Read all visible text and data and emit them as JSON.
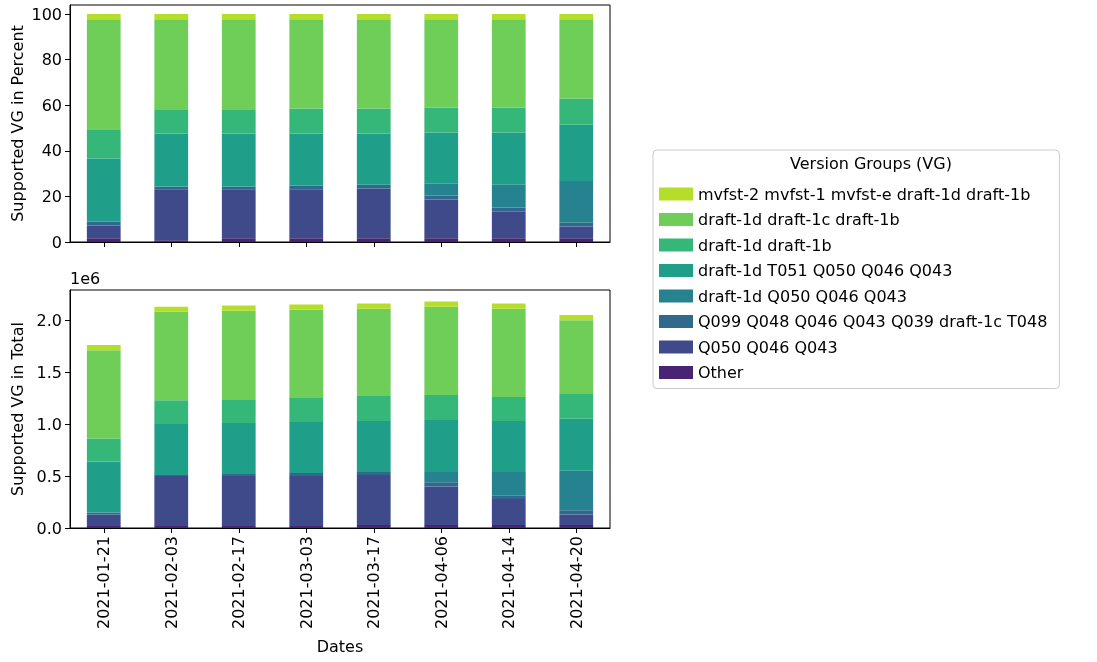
{
  "chart_data": [
    {
      "type": "bar",
      "stacked": true,
      "ylabel": "Supported VG in Percent",
      "legend": "right",
      "legend_title": "Version Groups (VG)",
      "tick_labels": "y",
      "grid": false,
      "categories": [
        "2021-01-21",
        "2021-02-03",
        "2021-02-17",
        "2021-03-03",
        "2021-03-17",
        "2021-04-06",
        "2021-04-14",
        "2021-04-20"
      ],
      "ylim": [
        0,
        104
      ],
      "yticks": [
        0,
        20,
        40,
        60,
        80,
        100
      ],
      "series": [
        {
          "name": "Other",
          "color": "#482475",
          "values": [
            1.6,
            0.8,
            1.6,
            1.6,
            1.6,
            1.6,
            1.6,
            1.6
          ]
        },
        {
          "name": "Q050 Q046 Q043",
          "color": "#3e4a89",
          "values": [
            5.6,
            22.3,
            21.5,
            21.5,
            21.9,
            17.1,
            11.7,
            5.2
          ]
        },
        {
          "name": "Q099 Q048 Q046 Q043 Q039 draft-1c T048",
          "color": "#31688e",
          "values": [
            1.8,
            1.2,
            1.2,
            1.7,
            1.6,
            1.7,
            1.8,
            1.7
          ]
        },
        {
          "name": "draft-1d Q050 Q046 Q043",
          "color": "#26828e",
          "values": [
            0,
            0,
            0,
            0,
            0,
            5.2,
            10.0,
            18.3
          ]
        },
        {
          "name": "draft-1d T051 Q050 Q046 Q043",
          "color": "#1f9e89",
          "values": [
            27.6,
            23.3,
            23.3,
            22.8,
            22.5,
            22.4,
            22.9,
            24.7
          ]
        },
        {
          "name": "draft-1d draft-1b",
          "color": "#35b779",
          "values": [
            12.9,
            10.6,
            10.6,
            11.0,
            11.0,
            11.0,
            11.0,
            11.5
          ]
        },
        {
          "name": "draft-1d draft-1c draft-1b",
          "color": "#6ece58",
          "values": [
            48.3,
            39.6,
            39.6,
            39.2,
            39.2,
            38.8,
            38.8,
            34.8
          ]
        },
        {
          "name": "mvfst-2 mvfst-1 mvfst-e draft-1d draft-1b",
          "color": "#b5de2b",
          "values": [
            2.2,
            2.2,
            2.2,
            2.2,
            2.2,
            2.2,
            2.2,
            2.2
          ]
        }
      ]
    },
    {
      "type": "bar",
      "stacked": true,
      "ylabel": "Supported VG in Total",
      "xlabel": "Dates",
      "grid": false,
      "annotations": [
        "1e6"
      ],
      "categories": [
        "2021-01-21",
        "2021-02-03",
        "2021-02-17",
        "2021-03-03",
        "2021-03-17",
        "2021-04-06",
        "2021-04-14",
        "2021-04-20"
      ],
      "ylim": [
        0,
        2.29
      ],
      "yticks": [
        {
          "value": 0,
          "label": "0.0"
        },
        0.5,
        {
          "value": 1,
          "label": "1.0"
        },
        1.5,
        {
          "value": 2,
          "label": "2.0"
        }
      ],
      "series": [
        {
          "color": "#482475",
          "values": [
            0.02,
            0.02,
            0.02,
            0.02,
            0.03,
            0.03,
            0.03,
            0.03
          ]
        },
        {
          "color": "#3e4a89",
          "values": [
            0.11,
            0.48,
            0.48,
            0.48,
            0.48,
            0.37,
            0.25,
            0.1
          ]
        },
        {
          "color": "#31688e",
          "values": [
            0.02,
            0.01,
            0.02,
            0.03,
            0.03,
            0.04,
            0.03,
            0.04
          ]
        },
        {
          "color": "#26828e",
          "values": [
            0,
            0,
            0,
            0,
            0,
            0.1,
            0.23,
            0.38
          ]
        },
        {
          "color": "#1f9e89",
          "values": [
            0.49,
            0.49,
            0.49,
            0.49,
            0.49,
            0.5,
            0.49,
            0.5
          ]
        },
        {
          "color": "#35b779",
          "values": [
            0.22,
            0.23,
            0.23,
            0.23,
            0.24,
            0.24,
            0.23,
            0.24
          ]
        },
        {
          "color": "#6ece58",
          "values": [
            0.85,
            0.85,
            0.85,
            0.85,
            0.84,
            0.85,
            0.85,
            0.71
          ]
        },
        {
          "color": "#b5de2b",
          "values": [
            0.05,
            0.05,
            0.05,
            0.05,
            0.05,
            0.05,
            0.05,
            0.05
          ]
        }
      ]
    }
  ]
}
